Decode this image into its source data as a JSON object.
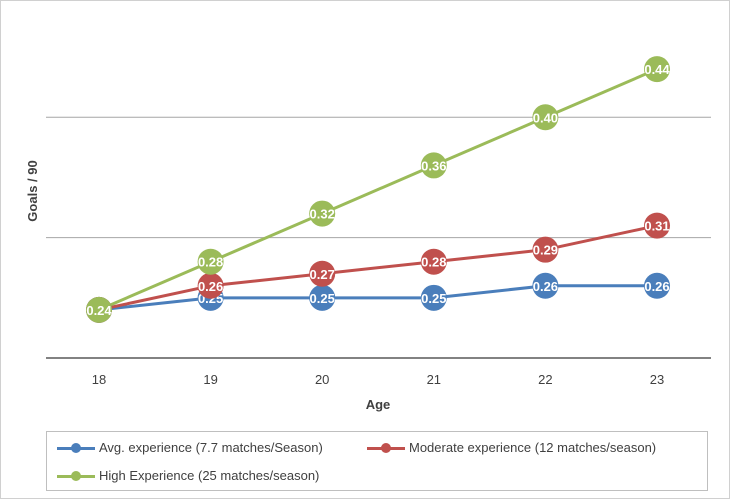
{
  "chart_data": {
    "type": "line",
    "title": "",
    "xlabel": "Age",
    "ylabel": "Goals / 90",
    "categories": [
      "18",
      "19",
      "20",
      "21",
      "22",
      "23"
    ],
    "ylim": [
      0.2,
      0.48
    ],
    "gridlines": [
      0.4,
      0.3
    ],
    "grid": true,
    "legend_position": "bottom",
    "series": [
      {
        "name": "Avg. experience (7.7 matches/Season)",
        "color": "#4a7ebb",
        "values": [
          0.24,
          0.25,
          0.25,
          0.25,
          0.26,
          0.26
        ],
        "labels": [
          "",
          "0.25",
          "0.25",
          "0.25",
          "0.26",
          "0.26"
        ]
      },
      {
        "name": "Moderate experience (12 matches/season)",
        "color": "#c0504d",
        "values": [
          0.24,
          0.26,
          0.27,
          0.28,
          0.29,
          0.31
        ],
        "labels": [
          "",
          "0.26",
          "0.27",
          "0.28",
          "0.29",
          "0.31"
        ]
      },
      {
        "name": "High Experience (25 matches/season)",
        "color": "#9bbb59",
        "values": [
          0.24,
          0.28,
          0.32,
          0.36,
          0.4,
          0.44
        ],
        "labels": [
          "0.24",
          "0.28",
          "0.32",
          "0.36",
          "0.40",
          "0.44"
        ]
      }
    ]
  }
}
